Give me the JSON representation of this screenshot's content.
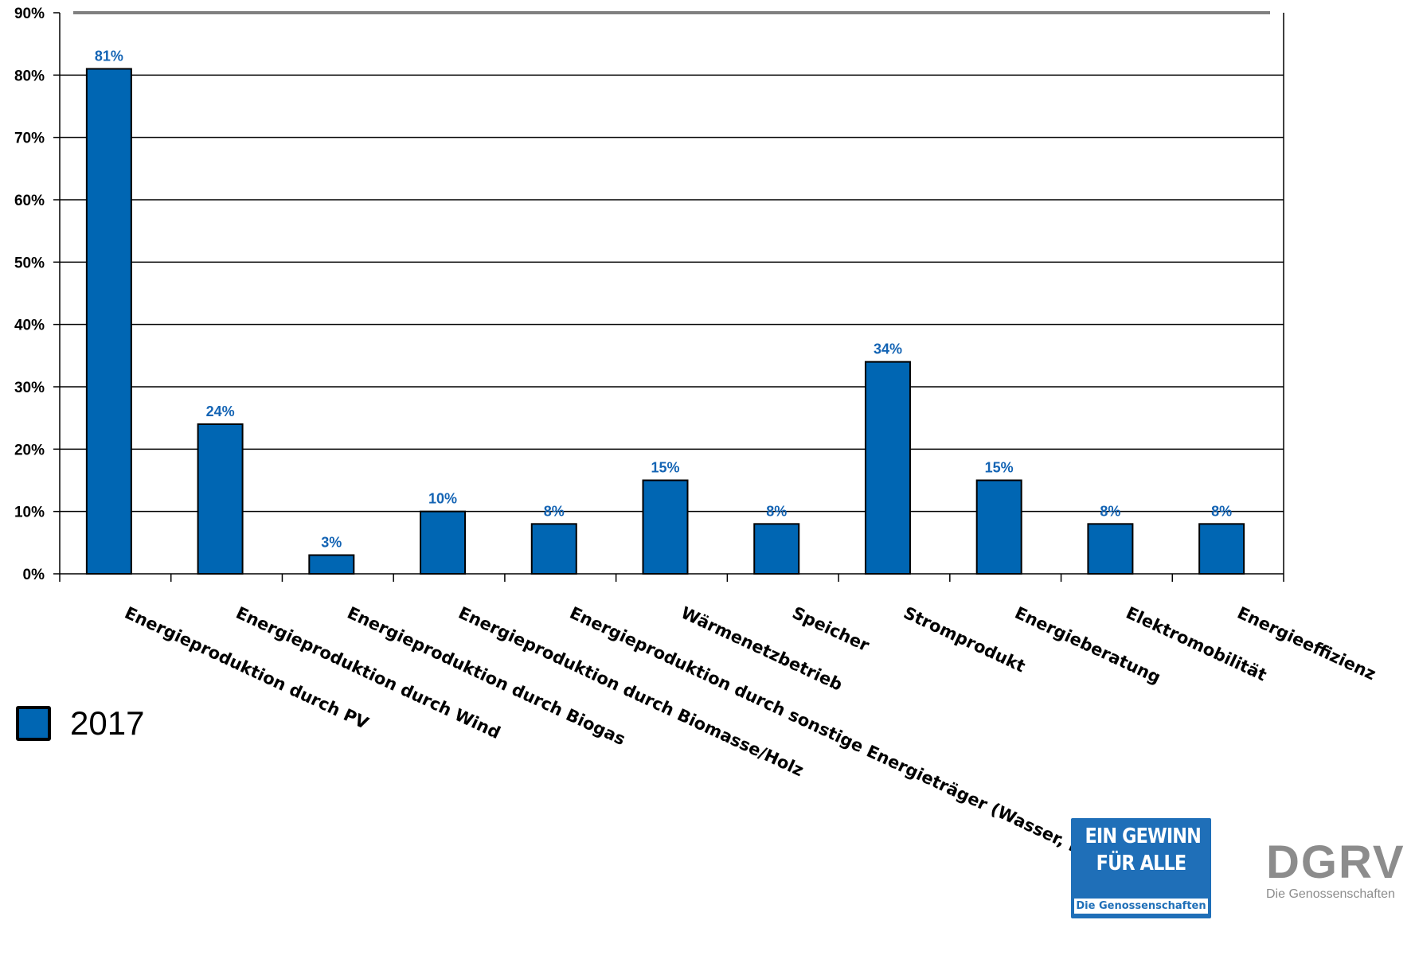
{
  "chart_data": {
    "type": "bar",
    "categories": [
      "Energieproduktion durch PV",
      "Energieproduktion durch Wind",
      "Energieproduktion durch Biogas",
      "Energieproduktion durch Biomasse/Holz",
      "Energieproduktion durch sonstige Energieträger (Wasser, BHKW)",
      "Wärmenetzbetrieb",
      "Speicher",
      "Stromprodukt",
      "Energieberatung",
      "Elektromobilität",
      "Energieeffizienz"
    ],
    "series": [
      {
        "name": "2017",
        "color": "#0066b3",
        "values": [
          81,
          24,
          3,
          10,
          8,
          15,
          8,
          34,
          15,
          8,
          8
        ]
      }
    ],
    "data_labels": [
      "81%",
      "24%",
      "3%",
      "10%",
      "8%",
      "15%",
      "8%",
      "34%",
      "15%",
      "8%",
      "8%"
    ],
    "yticks": [
      "0%",
      "10%",
      "20%",
      "30%",
      "40%",
      "50%",
      "60%",
      "70%",
      "80%",
      "90%"
    ],
    "ylim": [
      0,
      90
    ],
    "grid": true,
    "legend_position": "bottom-left"
  },
  "legend": {
    "label": "2017"
  },
  "logos": {
    "gewinn_line1": "EIN GEWINN",
    "gewinn_line2": "FÜR ALLE",
    "gewinn_sub": "Die Genossenschaften",
    "dgrv_main": "DGRV",
    "dgrv_sub": "Die Genossenschaften"
  },
  "colors": {
    "bar": "#0066b3",
    "data_label": "#1464b4",
    "top_line": "#808080"
  }
}
